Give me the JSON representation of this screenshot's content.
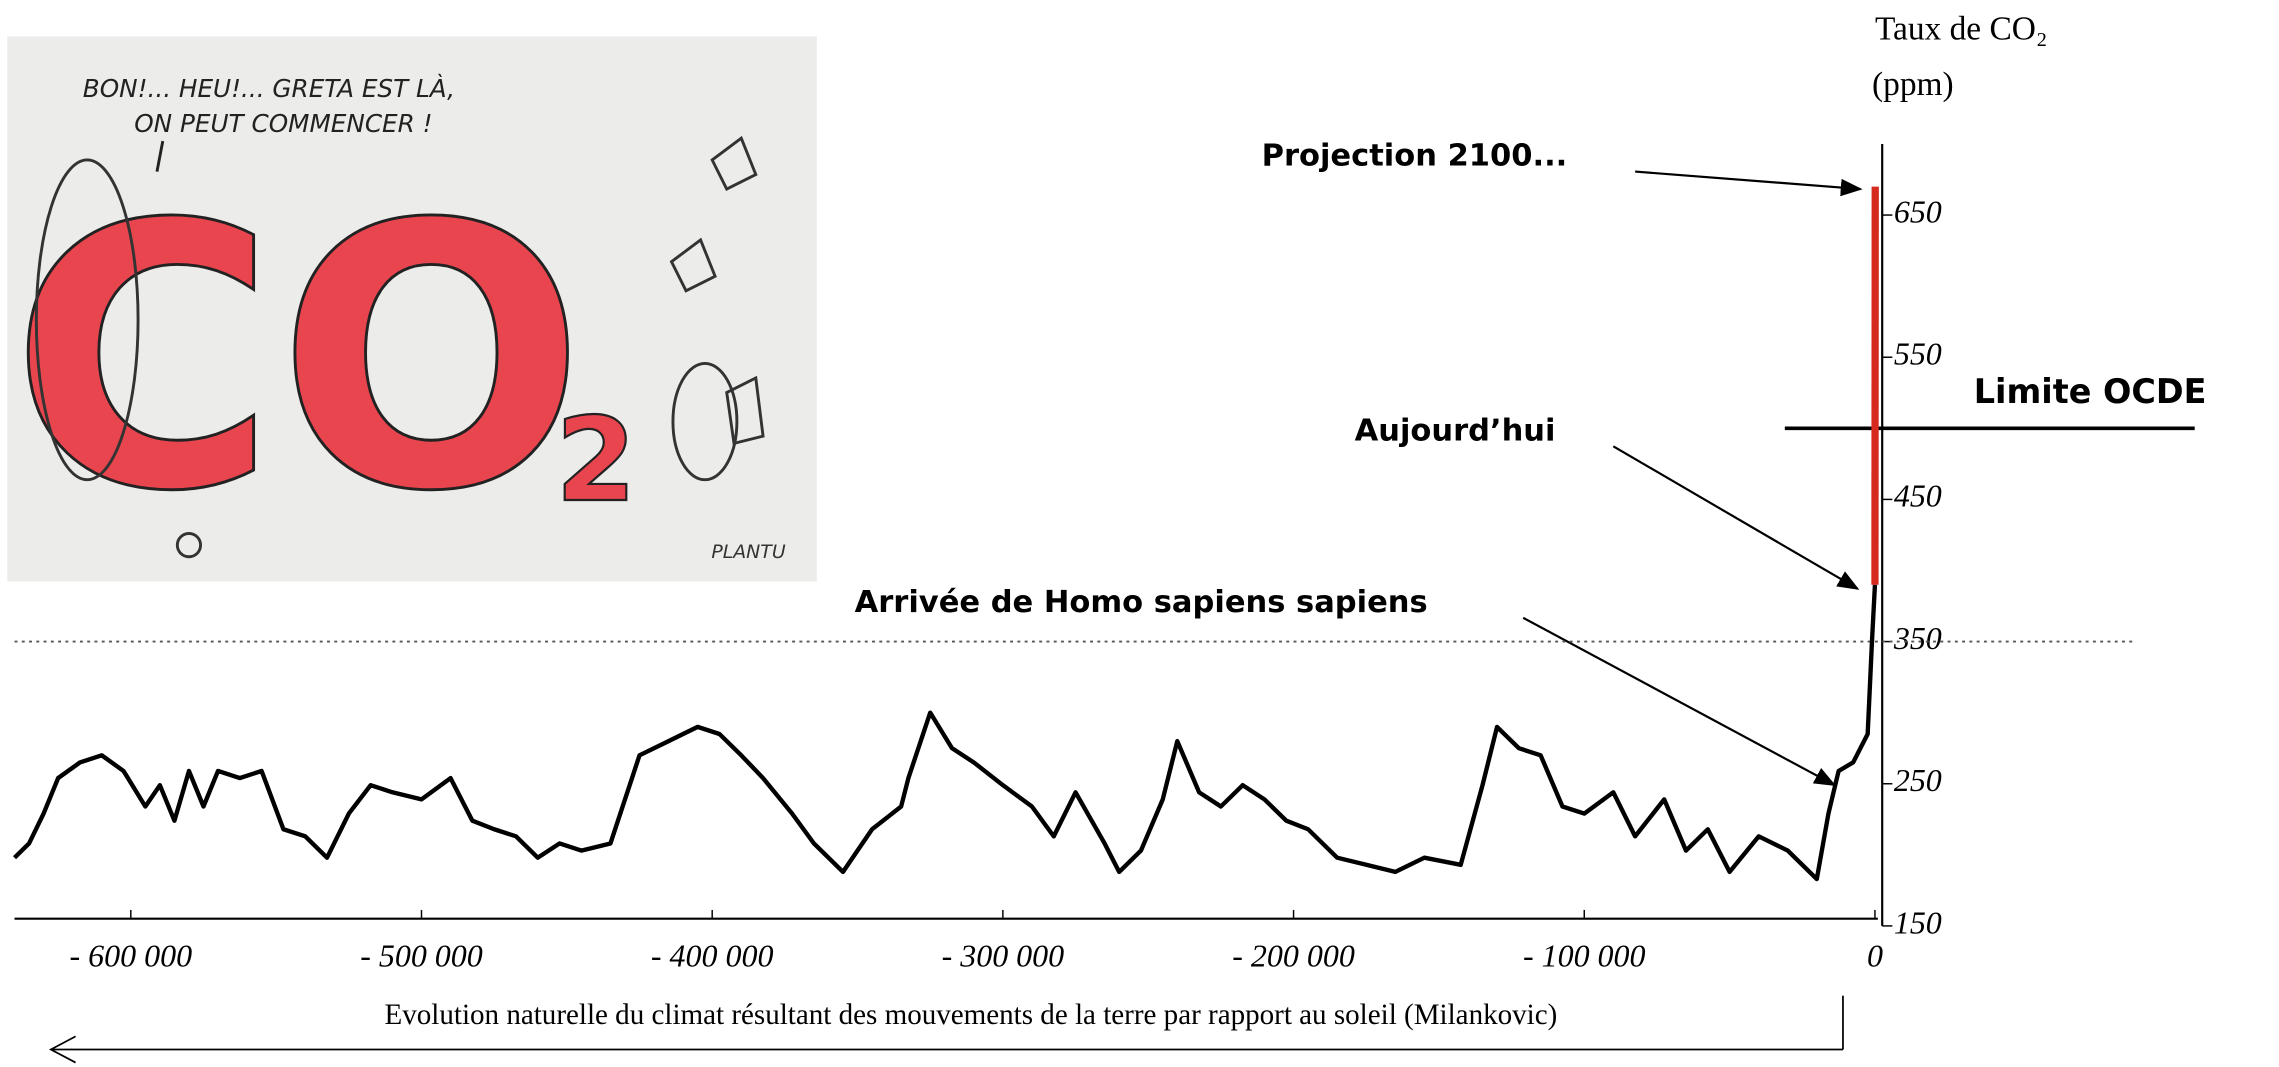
{
  "chart_data": {
    "type": "line",
    "y_label": [
      "Taux de CO₂",
      "(ppm)"
    ],
    "x_caption": "Evolution naturelle du climat résultant des mouvements de la terre par rapport au soleil (Milankovic)",
    "annotations": [
      "Projection 2100...",
      "Aujourd’hui",
      "Arrivée de Homo sapiens sapiens"
    ],
    "reference_lines": [
      {
        "value": 500,
        "label": "Limite OCDE",
        "color": "#000000",
        "style": "solid"
      },
      {
        "value": 350,
        "color": "#555555",
        "style": "dotted"
      }
    ],
    "xlim": [
      -640000,
      4000
    ],
    "ylim": [
      150,
      700
    ],
    "xticks": [
      {
        "value": -600000,
        "label": "- 600 000"
      },
      {
        "value": -500000,
        "label": "- 500 000"
      },
      {
        "value": -400000,
        "label": "- 400 000"
      },
      {
        "value": -300000,
        "label": "- 300 000"
      },
      {
        "value": -200000,
        "label": "- 200 000"
      },
      {
        "value": -100000,
        "label": "- 100 000"
      },
      0
    ],
    "yticks": [
      150,
      250,
      350,
      450,
      550,
      650
    ],
    "grid": false,
    "series": [
      {
        "color": "#000000",
        "x": [
          -640000,
          -635000,
          -630000,
          -625000,
          -617500,
          -610000,
          -602500,
          -595000,
          -590000,
          -585000,
          -580000,
          -575000,
          -570000,
          -562500,
          -555000,
          -547500,
          -540000,
          -532500,
          -525000,
          -517500,
          -510000,
          -500000,
          -490000,
          -482500,
          -475000,
          -467500,
          -460000,
          -452500,
          -445000,
          -435000,
          -425000,
          -415000,
          -405000,
          -397500,
          -390000,
          -382500,
          -372500,
          -365000,
          -355000,
          -345000,
          -335000,
          -332500,
          -325000,
          -317500,
          -310000,
          -300000,
          -290000,
          -282500,
          -275000,
          -265000,
          -260000,
          -252500,
          -245000,
          -240000,
          -232500,
          -225000,
          -217500,
          -210000,
          -202500,
          -195000,
          -185000,
          -175000,
          -165000,
          -155000,
          -142500,
          -135000,
          -130000,
          -122500,
          -115000,
          -107500,
          -100000,
          -90000,
          -82500,
          -72500,
          -65000,
          -57500,
          -50000,
          -40000,
          -30000,
          -20000,
          -16000,
          -12500,
          -7500,
          -2500,
          -1000,
          0
        ],
        "values": [
          198,
          208,
          229,
          254,
          265,
          270,
          259,
          234,
          249,
          224,
          259,
          234,
          259,
          254,
          259,
          218,
          213,
          198,
          229,
          249,
          244,
          239,
          254,
          224,
          218,
          213,
          198,
          208,
          203,
          208,
          270,
          280,
          290,
          285,
          270,
          254,
          229,
          208,
          188,
          218,
          234,
          254,
          300,
          275,
          265,
          249,
          234,
          213,
          244,
          208,
          188,
          203,
          239,
          280,
          244,
          234,
          249,
          239,
          224,
          218,
          198,
          193,
          188,
          198,
          193,
          249,
          290,
          275,
          270,
          234,
          229,
          244,
          213,
          239,
          203,
          218,
          188,
          213,
          203,
          183,
          229,
          259,
          265,
          285,
          351,
          390
        ]
      },
      {
        "color": "#d62a1e",
        "x": [
          0,
          100
        ],
        "values": [
          390,
          670
        ]
      }
    ]
  },
  "cartoon": {
    "speech": [
      "BON!... HEU!... GRETA EST LÀ,",
      "ON PEUT COMMENCER !"
    ],
    "big": "CO",
    "sub": "2",
    "signature": "PLANTU"
  }
}
